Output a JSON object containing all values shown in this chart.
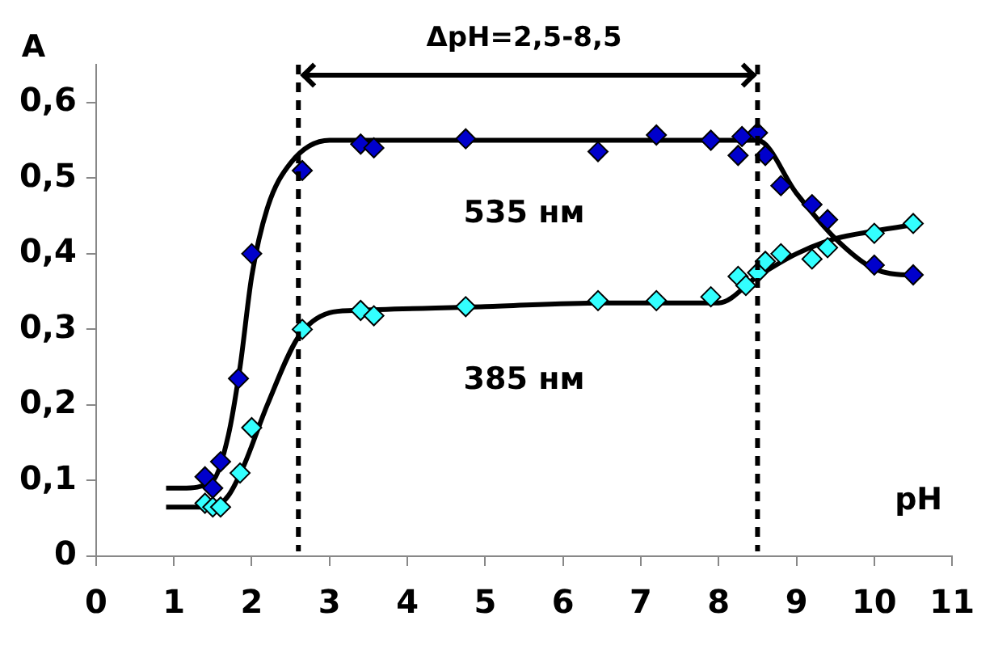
{
  "chart_data": {
    "type": "scatter",
    "xlabel": "pH",
    "ylabel": "A",
    "xlim": [
      0,
      11
    ],
    "ylim": [
      0,
      0.65
    ],
    "xticks": [
      0,
      1,
      2,
      3,
      4,
      5,
      6,
      7,
      8,
      9,
      10,
      11
    ],
    "yticks": [
      0,
      {
        "value": 0.1,
        "label": "0,1"
      },
      {
        "value": 0.2,
        "label": "0,2"
      },
      {
        "value": 0.3,
        "label": "0,3"
      },
      {
        "value": 0.4,
        "label": "0,4"
      },
      {
        "value": 0.5,
        "label": "0,5"
      },
      {
        "value": 0.6,
        "label": "0,6"
      }
    ],
    "grid": false,
    "legend": false,
    "marker": "diamond",
    "series": [
      {
        "color": "#0000cc",
        "x": [
          1.4,
          1.5,
          1.6,
          1.83,
          2.0,
          2.65,
          3.4,
          3.57,
          4.75,
          6.45,
          7.2,
          7.9,
          8.25,
          8.3,
          8.5,
          8.6,
          8.8,
          9.2,
          9.4,
          10.0,
          10.5
        ],
        "values": [
          0.105,
          0.09,
          0.125,
          0.235,
          0.4,
          0.51,
          0.545,
          0.54,
          0.552,
          0.535,
          0.557,
          0.55,
          0.53,
          0.555,
          0.56,
          0.53,
          0.49,
          0.465,
          0.445,
          0.385,
          0.372
        ]
      },
      {
        "color": "#33ffff",
        "x": [
          1.4,
          1.5,
          1.6,
          1.85,
          2.0,
          2.65,
          3.4,
          3.57,
          4.75,
          6.45,
          7.2,
          7.9,
          8.25,
          8.35,
          8.5,
          8.6,
          8.8,
          9.2,
          9.4,
          10.0,
          10.5
        ],
        "values": [
          0.07,
          0.065,
          0.065,
          0.11,
          0.17,
          0.3,
          0.325,
          0.318,
          0.33,
          0.338,
          0.338,
          0.343,
          0.37,
          0.358,
          0.375,
          0.39,
          0.4,
          0.393,
          0.408,
          0.427,
          0.44
        ]
      },
      {
        "type": "line",
        "name": "535 нм",
        "color": "#000000",
        "marker": "none",
        "x": [
          0.9,
          1.1,
          1.5,
          1.7,
          1.85,
          2.0,
          2.2,
          2.5,
          3.0,
          8.5,
          9.0,
          9.5,
          10.0,
          10.6
        ],
        "values": [
          0.09,
          0.09,
          0.1,
          0.16,
          0.25,
          0.37,
          0.46,
          0.52,
          0.55,
          0.55,
          0.48,
          0.42,
          0.38,
          0.37
        ]
      },
      {
        "type": "line",
        "name": "385 нм",
        "color": "#000000",
        "marker": "none",
        "x": [
          0.9,
          1.5,
          1.7,
          1.9,
          2.2,
          2.6,
          3.0,
          3.3,
          5.0,
          6.5,
          8.0,
          8.5,
          9.0,
          9.5,
          10.0,
          10.6
        ],
        "values": [
          0.065,
          0.065,
          0.08,
          0.12,
          0.2,
          0.29,
          0.322,
          0.325,
          0.33,
          0.335,
          0.335,
          0.37,
          0.4,
          0.42,
          0.43,
          0.44
        ]
      }
    ],
    "ref_lines": [
      {
        "axis": "x",
        "value": 2.6,
        "color": "#000000",
        "line_style": "dashed"
      },
      {
        "axis": "x",
        "value": 8.5,
        "color": "#000000",
        "line_style": "dashed"
      }
    ],
    "annotations": [
      "ΔpH=2,5-8,5"
    ]
  }
}
